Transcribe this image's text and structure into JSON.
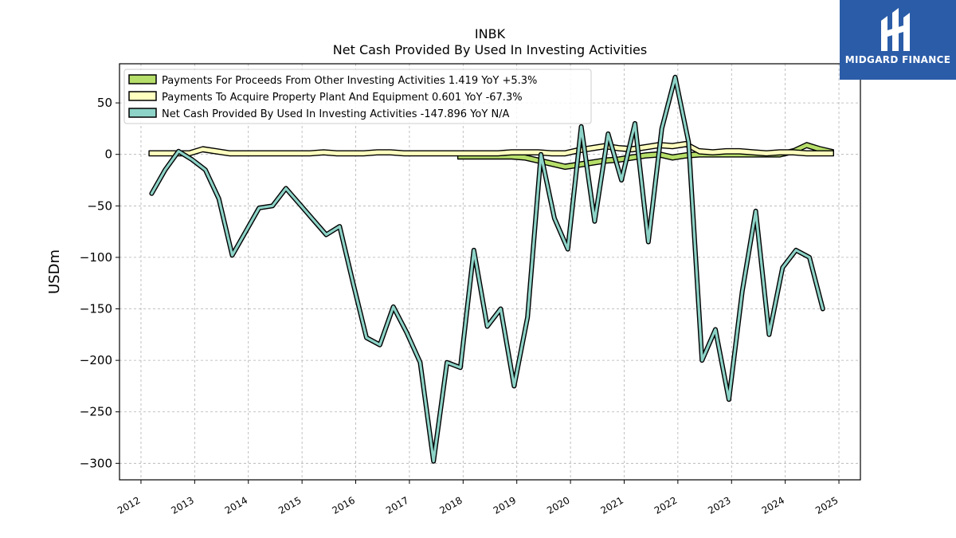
{
  "chart_data": {
    "type": "line",
    "title": "INBK",
    "subtitle": "Net Cash Provided By Used In Investing Activities",
    "ylabel": "USDm",
    "xlabel": "",
    "xlim": [
      2011.6,
      2025.4
    ],
    "ylim": [
      -316,
      88
    ],
    "grid": true,
    "legend_position": "top-left",
    "x_ticks": [
      "2012",
      "2013",
      "2014",
      "2015",
      "2016",
      "2017",
      "2018",
      "2019",
      "2020",
      "2021",
      "2022",
      "2023",
      "2024",
      "2025"
    ],
    "y_ticks": [
      50,
      0,
      -50,
      -100,
      -150,
      -200,
      -250,
      -300
    ],
    "y_tick_labels": [
      "50",
      "0",
      "−50",
      "−100",
      "−150",
      "−200",
      "−250",
      "−300"
    ],
    "series": [
      {
        "name": "Payments For Proceeds From Other Investing Activities",
        "legend_label": "Payments For Proceeds From Other Investing Activities  1.419 YoY +5.3%",
        "color": "#b6de6a",
        "style": "band",
        "x": [
          2017.9,
          2018.15,
          2018.4,
          2018.65,
          2018.9,
          2019.15,
          2019.4,
          2019.65,
          2019.9,
          2020.15,
          2020.4,
          2020.65,
          2020.9,
          2021.15,
          2021.4,
          2021.65,
          2021.9,
          2022.15,
          2022.4,
          2022.65,
          2022.9,
          2023.15,
          2023.4,
          2023.65,
          2023.9,
          2024.15,
          2024.4,
          2024.65,
          2024.9
        ],
        "values": [
          -2,
          -2,
          -2,
          -2,
          -2,
          -3,
          -6,
          -9,
          -12,
          -10,
          -8,
          -6,
          -5,
          -3,
          -1,
          0,
          -3,
          -1,
          0,
          0,
          0,
          0,
          0,
          0,
          0,
          3,
          9,
          5,
          2
        ]
      },
      {
        "name": "Payments To Acquire Property Plant And Equipment",
        "legend_label": "Payments To Acquire Property Plant And Equipment  0.601 YoY -67.3%",
        "color": "#ffffbf",
        "style": "band",
        "x": [
          2012.15,
          2012.4,
          2012.65,
          2012.9,
          2013.15,
          2013.4,
          2013.65,
          2013.9,
          2014.15,
          2014.4,
          2014.65,
          2014.9,
          2015.15,
          2015.4,
          2015.65,
          2015.9,
          2016.15,
          2016.4,
          2016.65,
          2016.9,
          2017.15,
          2017.4,
          2017.65,
          2017.9,
          2018.15,
          2018.4,
          2018.65,
          2018.9,
          2019.15,
          2019.4,
          2019.65,
          2019.9,
          2020.15,
          2020.4,
          2020.65,
          2020.9,
          2021.15,
          2021.4,
          2021.65,
          2021.9,
          2022.15,
          2022.4,
          2022.65,
          2022.9,
          2023.15,
          2023.4,
          2023.65,
          2023.9,
          2024.15,
          2024.4,
          2024.65,
          2024.9
        ],
        "values": [
          1,
          1,
          1,
          1,
          5,
          3,
          1,
          1,
          1,
          1,
          1,
          1,
          1,
          2,
          1,
          1,
          1,
          2,
          2,
          1,
          1,
          1,
          1,
          1,
          1,
          1,
          1,
          2,
          2,
          2,
          1,
          1,
          4,
          6,
          8,
          6,
          5,
          7,
          9,
          8,
          10,
          3,
          2,
          3,
          3,
          2,
          1,
          2,
          2,
          1,
          1,
          1
        ]
      },
      {
        "name": "Net Cash Provided By Used In Investing Activities",
        "legend_label": "Net Cash Provided By Used In Investing Activities  -147.896 YoY N/A",
        "color": "#8dd3c7",
        "style": "line",
        "x": [
          2012.2,
          2012.45,
          2012.7,
          2012.95,
          2013.2,
          2013.45,
          2013.7,
          2013.95,
          2014.2,
          2014.45,
          2014.7,
          2014.95,
          2015.2,
          2015.45,
          2015.7,
          2015.95,
          2016.2,
          2016.45,
          2016.7,
          2016.95,
          2017.2,
          2017.45,
          2017.7,
          2017.95,
          2018.2,
          2018.45,
          2018.7,
          2018.95,
          2019.2,
          2019.45,
          2019.7,
          2019.95,
          2020.2,
          2020.45,
          2020.7,
          2020.95,
          2021.2,
          2021.45,
          2021.7,
          2021.95,
          2022.2,
          2022.45,
          2022.7,
          2022.95,
          2023.2,
          2023.45,
          2023.7,
          2023.95,
          2024.2,
          2024.45,
          2024.7
        ],
        "values": [
          -38,
          -15,
          3,
          -5,
          -15,
          -43,
          -98,
          -75,
          -52,
          -50,
          -33,
          -48,
          -63,
          -78,
          -70,
          -125,
          -178,
          -185,
          -148,
          -173,
          -202,
          -298,
          -202,
          -207,
          -93,
          -167,
          -150,
          -225,
          -158,
          0,
          -62,
          -92,
          27,
          -65,
          20,
          -25,
          30,
          -85,
          25,
          75,
          12,
          -200,
          -170,
          -238,
          -133,
          -55,
          -175,
          -110,
          -93,
          -100,
          -150
        ]
      }
    ]
  }
}
